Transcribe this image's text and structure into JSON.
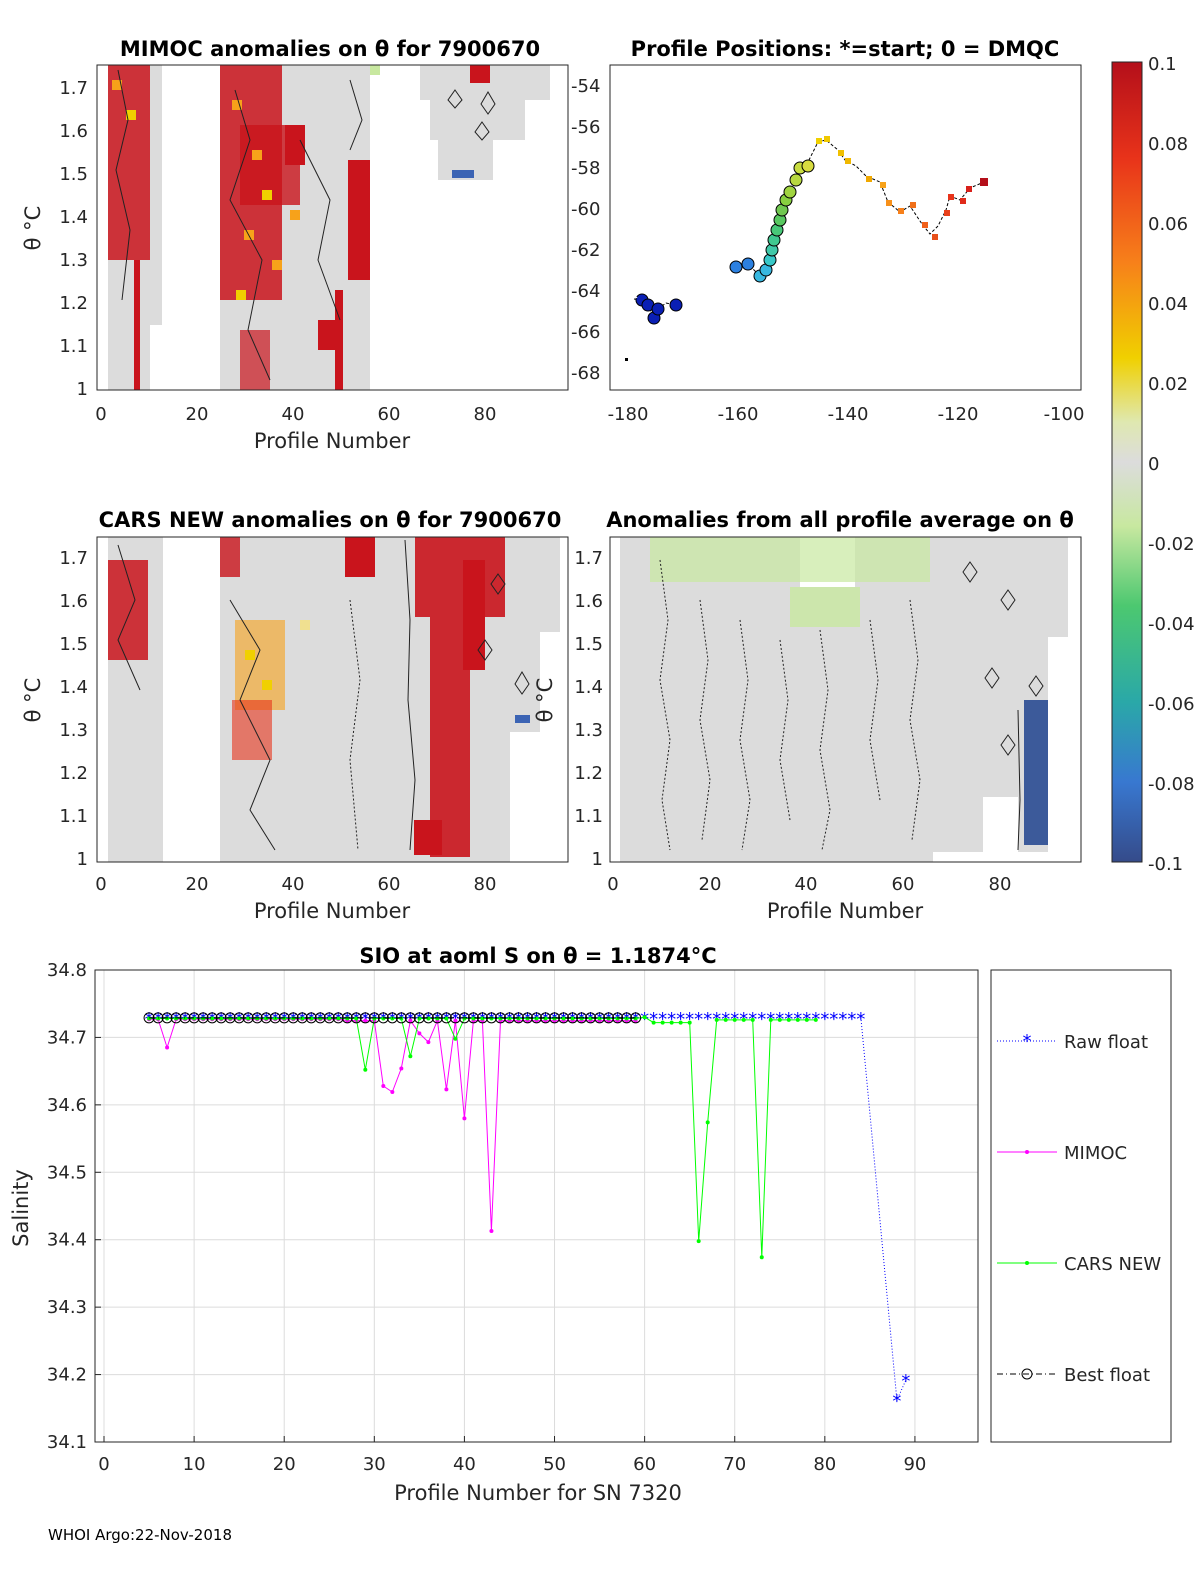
{
  "footer": "WHOI Argo:22-Nov-2018",
  "panels": {
    "mimoc": {
      "title": "MIMOC anomalies on θ  for 7900670",
      "xlabel": "Profile Number",
      "ylabel": "θ °C",
      "xticks": [
        "0",
        "20",
        "40",
        "60",
        "80"
      ],
      "yticks": [
        "1",
        "1.1",
        "1.2",
        "1.3",
        "1.4",
        "1.5",
        "1.6",
        "1.7"
      ]
    },
    "positions": {
      "title": "Profile Positions: *=start; 0 = DMQC",
      "xticks": [
        "-180",
        "-160",
        "-140",
        "-120",
        "-100"
      ],
      "yticks": [
        "-54",
        "-56",
        "-58",
        "-60",
        "-62",
        "-64",
        "-66",
        "-68"
      ]
    },
    "cars": {
      "title": "CARS NEW anomalies on θ for 7900670",
      "xlabel": "Profile Number",
      "ylabel": "θ °C",
      "xticks": [
        "0",
        "20",
        "40",
        "60",
        "80"
      ],
      "yticks": [
        "1",
        "1.1",
        "1.2",
        "1.3",
        "1.4",
        "1.5",
        "1.6",
        "1.7"
      ]
    },
    "allavg": {
      "title": "Anomalies from all profile average on θ",
      "xlabel": "Profile Number",
      "ylabel": "θ °C",
      "xticks": [
        "0",
        "20",
        "40",
        "60",
        "80"
      ],
      "yticks": [
        "1",
        "1.1",
        "1.2",
        "1.3",
        "1.4",
        "1.5",
        "1.6",
        "1.7"
      ]
    },
    "colorbar": {
      "ticks": [
        "0.1",
        "0.08",
        "0.06",
        "0.04",
        "0.02",
        "0",
        "-0.02",
        "-0.04",
        "-0.06",
        "-0.08",
        "-0.1"
      ]
    }
  },
  "chart_data": {
    "type": "line",
    "title": "SIO at aoml S on θ = 1.1874°C",
    "xlabel": "Profile Number for SN 7320",
    "ylabel": "Salinity",
    "xlim": [
      -1,
      97
    ],
    "ylim": [
      34.1,
      34.8
    ],
    "xticks": [
      "0",
      "10",
      "20",
      "30",
      "40",
      "50",
      "60",
      "70",
      "80",
      "90"
    ],
    "yticks": [
      "34.1",
      "34.2",
      "34.3",
      "34.4",
      "34.5",
      "34.6",
      "34.7",
      "34.8"
    ],
    "legend": [
      "Raw float",
      "MIMOC",
      "CARS NEW",
      "Best float"
    ],
    "series": [
      {
        "name": "Raw float",
        "color": "#0000ff",
        "x": [
          5,
          6,
          7,
          8,
          9,
          10,
          11,
          12,
          13,
          14,
          15,
          16,
          17,
          18,
          19,
          20,
          21,
          22,
          23,
          24,
          25,
          26,
          27,
          28,
          29,
          30,
          31,
          32,
          33,
          34,
          35,
          36,
          37,
          38,
          39,
          40,
          41,
          42,
          43,
          44,
          45,
          46,
          47,
          48,
          49,
          50,
          51,
          52,
          53,
          54,
          55,
          56,
          57,
          58,
          59,
          60,
          61,
          62,
          63,
          64,
          65,
          66,
          67,
          68,
          69,
          70,
          71,
          72,
          73,
          74,
          75,
          76,
          77,
          78,
          79,
          80,
          81,
          82,
          83,
          84,
          88,
          89
        ],
        "y": [
          34.729,
          34.729,
          34.729,
          34.729,
          34.729,
          34.729,
          34.729,
          34.729,
          34.729,
          34.729,
          34.729,
          34.729,
          34.729,
          34.729,
          34.729,
          34.729,
          34.729,
          34.729,
          34.729,
          34.729,
          34.729,
          34.729,
          34.729,
          34.729,
          34.729,
          34.729,
          34.729,
          34.729,
          34.729,
          34.729,
          34.729,
          34.729,
          34.729,
          34.729,
          34.729,
          34.729,
          34.729,
          34.729,
          34.729,
          34.729,
          34.729,
          34.729,
          34.729,
          34.729,
          34.729,
          34.729,
          34.729,
          34.729,
          34.729,
          34.729,
          34.729,
          34.729,
          34.729,
          34.729,
          34.729,
          34.729,
          34.729,
          34.729,
          34.729,
          34.729,
          34.729,
          34.729,
          34.729,
          34.729,
          34.729,
          34.729,
          34.729,
          34.729,
          34.729,
          34.729,
          34.729,
          34.729,
          34.729,
          34.729,
          34.729,
          34.729,
          34.729,
          34.729,
          34.729,
          34.729,
          34.162,
          34.192
        ]
      },
      {
        "name": "MIMOC",
        "color": "#ff00ff",
        "x": [
          5,
          6,
          7,
          8,
          9,
          10,
          11,
          12,
          13,
          14,
          15,
          16,
          17,
          18,
          19,
          20,
          21,
          22,
          23,
          24,
          25,
          26,
          27,
          28,
          29,
          30,
          31,
          32,
          33,
          34,
          35,
          36,
          37,
          38,
          39,
          40,
          41,
          42,
          43,
          44,
          45,
          46,
          47,
          48,
          49,
          50,
          51,
          52,
          53,
          54,
          55,
          56,
          57,
          58,
          59
        ],
        "y": [
          34.727,
          34.727,
          34.685,
          34.727,
          34.727,
          34.727,
          34.727,
          34.727,
          34.727,
          34.727,
          34.727,
          34.727,
          34.727,
          34.727,
          34.727,
          34.727,
          34.727,
          34.727,
          34.727,
          34.727,
          34.727,
          34.727,
          34.725,
          34.725,
          34.725,
          34.725,
          34.628,
          34.619,
          34.654,
          34.725,
          34.706,
          34.693,
          34.725,
          34.623,
          34.725,
          34.58,
          34.725,
          34.725,
          34.413,
          34.725,
          34.725,
          34.725,
          34.725,
          34.725,
          34.725,
          34.725,
          34.725,
          34.725,
          34.725,
          34.725,
          34.725,
          34.725,
          34.725,
          34.725,
          34.725
        ]
      },
      {
        "name": "CARS NEW",
        "color": "#00ff00",
        "x": [
          5,
          6,
          7,
          8,
          9,
          10,
          11,
          12,
          13,
          14,
          15,
          16,
          17,
          18,
          19,
          20,
          21,
          22,
          23,
          24,
          25,
          26,
          27,
          28,
          29,
          30,
          31,
          32,
          33,
          34,
          35,
          36,
          37,
          38,
          39,
          40,
          41,
          42,
          43,
          44,
          45,
          46,
          47,
          48,
          49,
          50,
          51,
          52,
          53,
          54,
          55,
          56,
          57,
          58,
          59,
          60,
          61,
          62,
          63,
          64,
          65,
          66,
          67,
          68,
          69,
          70,
          71,
          72,
          73,
          74,
          75,
          76,
          77,
          78,
          79
        ],
        "y": [
          34.728,
          34.728,
          34.728,
          34.728,
          34.728,
          34.728,
          34.728,
          34.728,
          34.728,
          34.728,
          34.728,
          34.728,
          34.728,
          34.728,
          34.728,
          34.728,
          34.728,
          34.728,
          34.728,
          34.728,
          34.728,
          34.728,
          34.728,
          34.728,
          34.652,
          34.728,
          34.728,
          34.728,
          34.728,
          34.672,
          34.728,
          34.728,
          34.728,
          34.728,
          34.698,
          34.728,
          34.728,
          34.728,
          34.728,
          34.728,
          34.728,
          34.728,
          34.728,
          34.728,
          34.728,
          34.728,
          34.728,
          34.728,
          34.728,
          34.728,
          34.728,
          34.728,
          34.728,
          34.728,
          34.728,
          34.73,
          34.722,
          34.722,
          34.722,
          34.722,
          34.722,
          34.398,
          34.574,
          34.726,
          34.726,
          34.726,
          34.726,
          34.726,
          34.374,
          34.726,
          34.726,
          34.726,
          34.726,
          34.726,
          34.726
        ]
      },
      {
        "name": "Best float",
        "color": "#000000",
        "x": [
          5,
          6,
          7,
          8,
          9,
          10,
          11,
          12,
          13,
          14,
          15,
          16,
          17,
          18,
          19,
          20,
          21,
          22,
          23,
          24,
          25,
          26,
          27,
          28,
          29,
          30,
          31,
          32,
          33,
          34,
          35,
          36,
          37,
          38,
          39,
          40,
          41,
          42,
          43,
          44,
          45,
          46,
          47,
          48,
          49,
          50,
          51,
          52,
          53,
          54,
          55,
          56,
          57,
          58,
          59
        ],
        "y": [
          34.729,
          34.729,
          34.729,
          34.729,
          34.729,
          34.729,
          34.729,
          34.729,
          34.729,
          34.729,
          34.729,
          34.729,
          34.729,
          34.729,
          34.729,
          34.729,
          34.729,
          34.729,
          34.729,
          34.729,
          34.729,
          34.729,
          34.729,
          34.729,
          34.729,
          34.729,
          34.729,
          34.729,
          34.729,
          34.729,
          34.729,
          34.729,
          34.729,
          34.729,
          34.729,
          34.729,
          34.729,
          34.729,
          34.729,
          34.729,
          34.729,
          34.729,
          34.729,
          34.729,
          34.729,
          34.729,
          34.729,
          34.729,
          34.729,
          34.729,
          34.729,
          34.729,
          34.729,
          34.729,
          34.729
        ]
      }
    ]
  }
}
